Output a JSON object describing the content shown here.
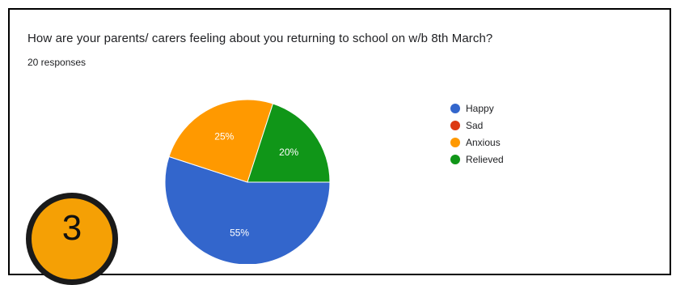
{
  "question": "How are your parents/ carers feeling about you returning to school on w/b 8th March?",
  "responses_text": "20 responses",
  "badge_number": "3",
  "chart_data": {
    "type": "pie",
    "title": "How are your parents/ carers feeling about you returning to school on w/b 8th March?",
    "total_responses": 20,
    "legend_position": "right",
    "slices": [
      {
        "label": "Happy",
        "value": 55,
        "color": "#3366cc",
        "display": "55%"
      },
      {
        "label": "Sad",
        "value": 0,
        "color": "#dc3912",
        "display": ""
      },
      {
        "label": "Anxious",
        "value": 25,
        "color": "#ff9900",
        "display": "25%"
      },
      {
        "label": "Relieved",
        "value": 20,
        "color": "#109618",
        "display": "20%"
      }
    ]
  }
}
